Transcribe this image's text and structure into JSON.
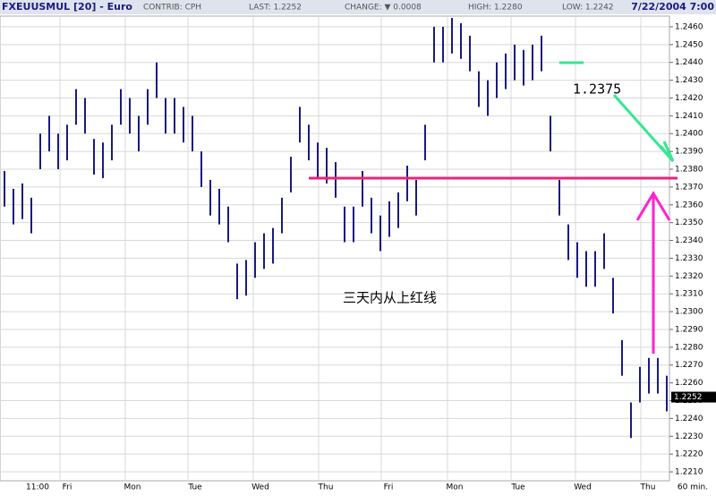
{
  "header": {
    "symbol": "FXEUUSMUL [20] - Euro",
    "contrib": "CONTRIB: CPH",
    "last": "LAST: 1.2252",
    "change": "CHANGE: ▼ 0.0008",
    "high": "HIGH: 1.2280",
    "low": "LOW: 1.2242",
    "date": "7/22/2004 7:00"
  },
  "chart_data": {
    "type": "ohlc",
    "color": "#1a1a80",
    "x_labels": [
      "11:00",
      "Fri",
      "Mon",
      "Tue",
      "Wed",
      "Thu",
      "Fri",
      "Mon",
      "Tue",
      "Wed",
      "Thu",
      "60 min."
    ],
    "high": [
      1.2379,
      1.2369,
      1.2372,
      1.2364,
      1.24,
      1.241,
      1.24,
      1.2405,
      1.2425,
      1.242,
      1.2397,
      1.2395,
      1.2405,
      1.2425,
      1.242,
      1.241,
      1.2425,
      1.244,
      1.242,
      1.242,
      1.2415,
      1.241,
      1.239,
      1.2374,
      1.2369,
      1.2359,
      1.2327,
      1.2329,
      1.2339,
      1.2344,
      1.2347,
      1.2364,
      1.2387,
      1.2415,
      1.2405,
      1.2395,
      1.2392,
      1.2384,
      1.2359,
      1.2359,
      1.2379,
      1.2364,
      1.2354,
      1.2362,
      1.2367,
      1.2382,
      1.2374,
      1.2405,
      1.246,
      1.246,
      1.2465,
      1.2462,
      1.2455,
      1.2435,
      1.243,
      1.244,
      1.2445,
      1.245,
      1.2447,
      1.245,
      1.2455,
      1.241,
      1.2374,
      1.2349,
      1.2339,
      1.2334,
      1.2334,
      1.2344,
      1.2319,
      1.2284,
      1.2249,
      1.2269,
      1.2274,
      1.2274,
      1.2264
    ],
    "low": [
      1.2359,
      1.2349,
      1.2352,
      1.2344,
      1.238,
      1.239,
      1.238,
      1.2385,
      1.2405,
      1.24,
      1.2377,
      1.2375,
      1.2385,
      1.2405,
      1.24,
      1.239,
      1.2405,
      1.242,
      1.24,
      1.24,
      1.2395,
      1.239,
      1.237,
      1.2354,
      1.2349,
      1.2339,
      1.2307,
      1.2309,
      1.2319,
      1.2324,
      1.2327,
      1.2344,
      1.2367,
      1.2395,
      1.2385,
      1.2375,
      1.2372,
      1.2364,
      1.2339,
      1.2339,
      1.2359,
      1.2344,
      1.2334,
      1.2342,
      1.2347,
      1.2362,
      1.2354,
      1.2385,
      1.244,
      1.244,
      1.2445,
      1.2442,
      1.2435,
      1.2415,
      1.241,
      1.242,
      1.2425,
      1.243,
      1.2427,
      1.243,
      1.2435,
      1.239,
      1.2354,
      1.2329,
      1.2319,
      1.2314,
      1.2314,
      1.2324,
      1.2299,
      1.2264,
      1.2229,
      1.2249,
      1.2254,
      1.2254,
      1.2244
    ],
    "ylim": [
      1.2205,
      1.2466
    ],
    "yticks": [
      {
        "value": 1.221,
        "label": "1.2210"
      },
      {
        "value": 1.222,
        "label": "1.2220"
      },
      {
        "value": 1.223,
        "label": "1.2230"
      },
      {
        "value": 1.224,
        "label": "1.2240"
      },
      {
        "value": 1.225,
        "label": "1.2250"
      },
      {
        "value": 1.226,
        "label": "1.2260"
      },
      {
        "value": 1.227,
        "label": "1.2270"
      },
      {
        "value": 1.228,
        "label": "1.2280"
      },
      {
        "value": 1.229,
        "label": "1.2290"
      },
      {
        "value": 1.23,
        "label": "1.2300"
      },
      {
        "value": 1.231,
        "label": "1.2310"
      },
      {
        "value": 1.232,
        "label": "1.2320"
      },
      {
        "value": 1.233,
        "label": "1.2330"
      },
      {
        "value": 1.234,
        "label": "1.2340"
      },
      {
        "value": 1.235,
        "label": "1.2350"
      },
      {
        "value": 1.236,
        "label": "1.2360"
      },
      {
        "value": 1.237,
        "label": "1.2370"
      },
      {
        "value": 1.238,
        "label": "1.2380"
      },
      {
        "value": 1.239,
        "label": "1.2390"
      },
      {
        "value": 1.24,
        "label": "1.2400"
      },
      {
        "value": 1.241,
        "label": "1.2410"
      },
      {
        "value": 1.242,
        "label": "1.2420"
      },
      {
        "value": 1.243,
        "label": "1.2430"
      },
      {
        "value": 1.244,
        "label": "1.2440"
      },
      {
        "value": 1.245,
        "label": "1.2450"
      },
      {
        "value": 1.246,
        "label": "1.2460"
      }
    ],
    "price_tag": {
      "value": 1.2252,
      "label": "1.2252"
    },
    "hline": {
      "value": 1.2375,
      "label": "1.2375"
    },
    "note": "三天内从上红线"
  }
}
